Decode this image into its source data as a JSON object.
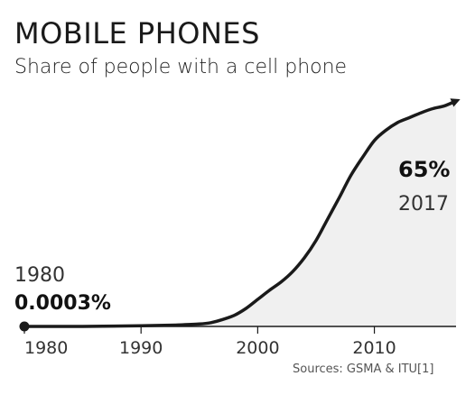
{
  "title": "MOBILE PHONES",
  "subtitle": "Share of people with a cell phone",
  "source": "Sources: GSMA & ITU[1]",
  "annotations": {
    "start_year": "1980",
    "start_value": "0.0003%",
    "end_value": "65%",
    "end_year": "2017"
  },
  "colors": {
    "line": "#1a1a1a",
    "fill": "#f0f0f0"
  },
  "chart_data": {
    "type": "area",
    "title": "MOBILE PHONES",
    "subtitle": "Share of people with a cell phone",
    "xlabel": "",
    "ylabel": "",
    "x": [
      1980,
      1985,
      1990,
      1993,
      1995,
      1996,
      1997,
      1998,
      1999,
      2000,
      2001,
      2002,
      2003,
      2004,
      2005,
      2006,
      2007,
      2008,
      2009,
      2010,
      2011,
      2012,
      2013,
      2014,
      2015,
      2016,
      2017
    ],
    "y": [
      0.0003,
      0.01,
      0.2,
      0.4,
      0.7,
      1.1,
      2.0,
      3.2,
      5.2,
      7.8,
      10.4,
      12.8,
      15.8,
      19.8,
      24.8,
      31.0,
      37.2,
      43.6,
      48.8,
      53.6,
      56.6,
      58.8,
      60.2,
      61.6,
      62.8,
      63.6,
      65
    ],
    "xlim": [
      1980,
      2017
    ],
    "ylim": [
      0,
      65
    ],
    "x_ticks": [
      1980,
      1990,
      2000,
      2010
    ],
    "grid": false,
    "legend": "none"
  }
}
